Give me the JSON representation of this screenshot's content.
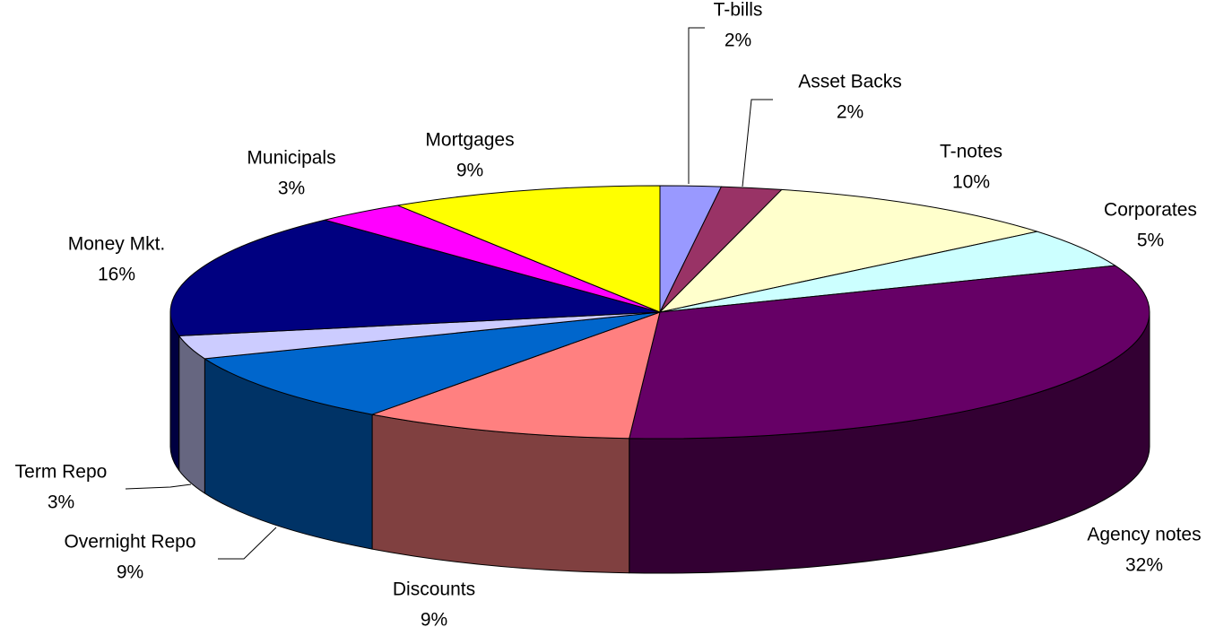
{
  "chart_data": {
    "type": "pie3d",
    "categories": [
      "T-bills",
      "Asset Backs",
      "T-notes",
      "Corporates",
      "Agency notes",
      "Discounts",
      "Overnight Repo",
      "Term Repo",
      "Money Mkt.",
      "Municipals",
      "Mortgages"
    ],
    "values": [
      2,
      2,
      10,
      5,
      32,
      9,
      9,
      3,
      16,
      3,
      9
    ],
    "value_labels": [
      "2%",
      "2%",
      "10%",
      "5%",
      "32%",
      "9%",
      "9%",
      "3%",
      "16%",
      "3%",
      "9%"
    ],
    "colors": [
      "#9999ff",
      "#993366",
      "#ffffcc",
      "#ccffff",
      "#660066",
      "#ff8080",
      "#0066cc",
      "#ccccff",
      "#000080",
      "#ff00ff",
      "#ffff00"
    ]
  }
}
